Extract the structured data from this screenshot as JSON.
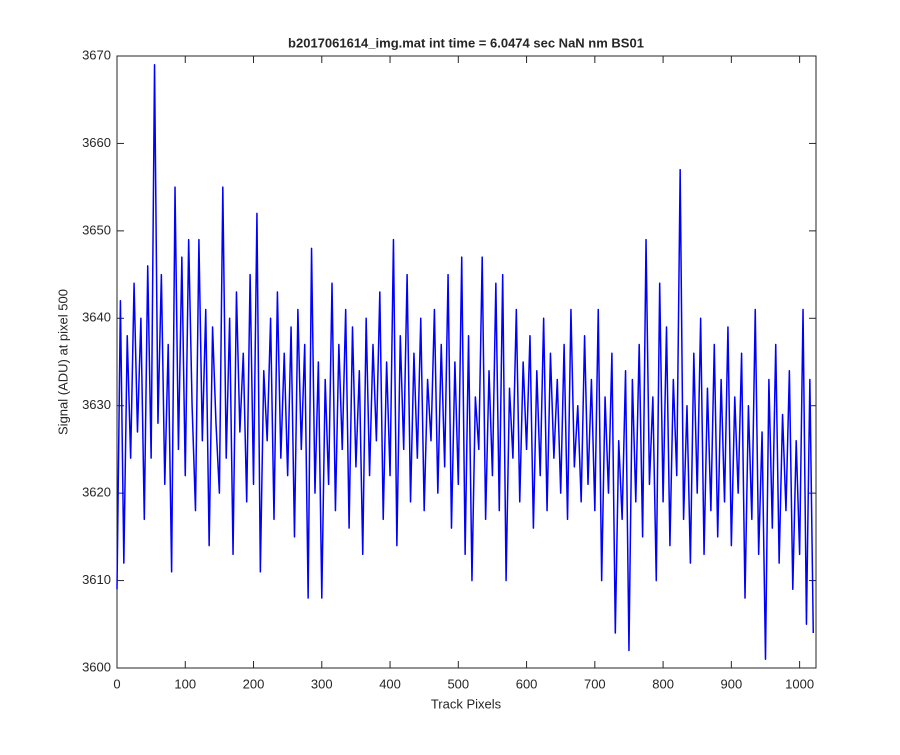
{
  "chart_data": {
    "type": "line",
    "title": "b2017061614_img.mat int time = 6.0474 sec  NaN nm BS01",
    "x_label": "Track Pixels",
    "y_label": "Signal (ADU) at pixel 500",
    "color": "#0000ff",
    "xlim": [
      0,
      1024
    ],
    "xticks": [
      0,
      100,
      200,
      300,
      400,
      500,
      600,
      700,
      800,
      900,
      1000
    ],
    "ylim": [
      3600,
      3670
    ],
    "yticks": [
      3600,
      3610,
      3620,
      3630,
      3640,
      3650,
      3660,
      3670
    ],
    "x": [
      0,
      5,
      10,
      15,
      20,
      25,
      30,
      35,
      40,
      45,
      50,
      55,
      60,
      65,
      70,
      75,
      80,
      85,
      90,
      95,
      100,
      105,
      110,
      115,
      120,
      125,
      130,
      135,
      140,
      145,
      150,
      155,
      160,
      165,
      170,
      175,
      180,
      185,
      190,
      195,
      200,
      205,
      210,
      215,
      220,
      225,
      230,
      235,
      240,
      245,
      250,
      255,
      260,
      265,
      270,
      275,
      280,
      285,
      290,
      295,
      300,
      305,
      310,
      315,
      320,
      325,
      330,
      335,
      340,
      345,
      350,
      355,
      360,
      365,
      370,
      375,
      380,
      385,
      390,
      395,
      400,
      405,
      410,
      415,
      420,
      425,
      430,
      435,
      440,
      445,
      450,
      455,
      460,
      465,
      470,
      475,
      480,
      485,
      490,
      495,
      500,
      505,
      510,
      515,
      520,
      525,
      530,
      535,
      540,
      545,
      550,
      555,
      560,
      565,
      570,
      575,
      580,
      585,
      590,
      595,
      600,
      605,
      610,
      615,
      620,
      625,
      630,
      635,
      640,
      645,
      650,
      655,
      660,
      665,
      670,
      675,
      680,
      685,
      690,
      695,
      700,
      705,
      710,
      715,
      720,
      725,
      730,
      735,
      740,
      745,
      750,
      755,
      760,
      765,
      770,
      775,
      780,
      785,
      790,
      795,
      800,
      805,
      810,
      815,
      820,
      825,
      830,
      835,
      840,
      845,
      850,
      855,
      860,
      865,
      870,
      875,
      880,
      885,
      890,
      895,
      900,
      905,
      910,
      915,
      920,
      925,
      930,
      935,
      940,
      945,
      950,
      955,
      960,
      965,
      970,
      975,
      980,
      985,
      990,
      995,
      1000,
      1005,
      1010,
      1015,
      1020
    ],
    "values": [
      3609,
      3642,
      3612,
      3638,
      3624,
      3644,
      3627,
      3640,
      3617,
      3646,
      3624,
      3669,
      3628,
      3645,
      3621,
      3637,
      3611,
      3655,
      3625,
      3647,
      3622,
      3649,
      3630,
      3618,
      3649,
      3626,
      3641,
      3614,
      3639,
      3628,
      3620,
      3655,
      3624,
      3640,
      3613,
      3643,
      3627,
      3636,
      3619,
      3645,
      3621,
      3652,
      3611,
      3634,
      3626,
      3640,
      3617,
      3643,
      3624,
      3636,
      3622,
      3639,
      3615,
      3641,
      3625,
      3637,
      3608,
      3648,
      3620,
      3635,
      3608,
      3633,
      3621,
      3644,
      3618,
      3637,
      3625,
      3641,
      3616,
      3639,
      3623,
      3634,
      3613,
      3640,
      3622,
      3637,
      3626,
      3643,
      3617,
      3635,
      3622,
      3649,
      3614,
      3638,
      3625,
      3645,
      3619,
      3636,
      3624,
      3640,
      3618,
      3633,
      3626,
      3641,
      3620,
      3637,
      3623,
      3645,
      3616,
      3635,
      3621,
      3647,
      3613,
      3638,
      3610,
      3631,
      3625,
      3647,
      3617,
      3634,
      3622,
      3644,
      3618,
      3645,
      3610,
      3632,
      3624,
      3641,
      3619,
      3635,
      3625,
      3638,
      3616,
      3634,
      3622,
      3640,
      3618,
      3636,
      3624,
      3633,
      3620,
      3637,
      3617,
      3641,
      3623,
      3630,
      3619,
      3638,
      3621,
      3633,
      3618,
      3641,
      3610,
      3631,
      3620,
      3636,
      3604,
      3626,
      3617,
      3634,
      3602,
      3633,
      3619,
      3637,
      3615,
      3649,
      3621,
      3631,
      3610,
      3644,
      3619,
      3639,
      3614,
      3633,
      3622,
      3657,
      3617,
      3630,
      3612,
      3636,
      3620,
      3640,
      3613,
      3632,
      3618,
      3637,
      3615,
      3633,
      3619,
      3639,
      3614,
      3631,
      3620,
      3636,
      3608,
      3630,
      3617,
      3641,
      3613,
      3627,
      3601,
      3633,
      3616,
      3637,
      3612,
      3629,
      3618,
      3634,
      3609,
      3626,
      3613,
      3641,
      3605,
      3633,
      3604
    ]
  }
}
